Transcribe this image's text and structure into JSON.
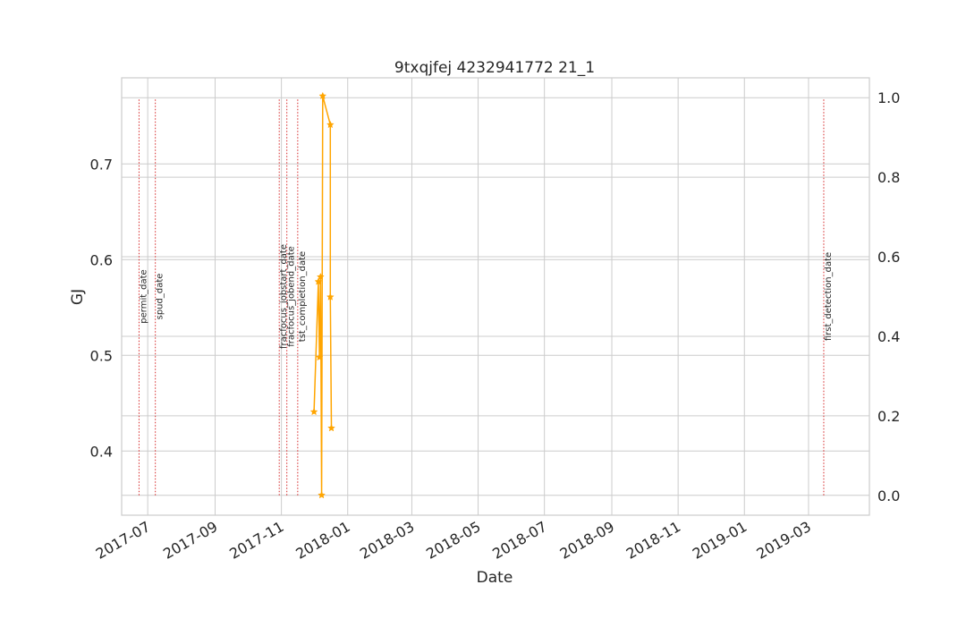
{
  "chart_data": {
    "type": "line",
    "title": "9txqjfej 4232941772 21_1",
    "xlabel": "Date",
    "ylabel": "GJ",
    "ylabel_color": "#1f77b4",
    "x_ticks": [
      "2017-07-01",
      "2017-09-01",
      "2017-11-01",
      "2018-01-01",
      "2018-03-01",
      "2018-05-01",
      "2018-07-01",
      "2018-09-01",
      "2018-11-01",
      "2019-01-01",
      "2019-03-01"
    ],
    "x_tick_labels": [
      "2017-07",
      "2017-09",
      "2017-11",
      "2018-01",
      "2018-03",
      "2018-05",
      "2018-07",
      "2018-09",
      "2018-11",
      "2019-01",
      "2019-03"
    ],
    "xlim": [
      "2017-06-07",
      "2019-04-26"
    ],
    "y_left": {
      "ticks": [
        0.4,
        0.5,
        0.6,
        0.7
      ],
      "tick_labels": [
        "0.4",
        "0.5",
        "0.6",
        "0.7"
      ],
      "lim": [
        0.333,
        0.79
      ]
    },
    "y_right": {
      "ticks": [
        0.0,
        0.2,
        0.4,
        0.6,
        0.8,
        1.0
      ],
      "tick_labels": [
        "0.0",
        "0.2",
        "0.4",
        "0.6",
        "0.8",
        "1.0"
      ],
      "lim": [
        -0.05,
        1.05
      ]
    },
    "grid": true,
    "series": [
      {
        "color": "#ffa500",
        "marker": "star",
        "axis": "left",
        "x": [
          "2017-12-01",
          "2017-12-05",
          "2017-12-06",
          "2017-12-07",
          "2017-12-08",
          "2017-12-09",
          "2017-12-16",
          "2017-12-16",
          "2017-12-17"
        ],
        "y": [
          0.441,
          0.577,
          0.498,
          0.582,
          0.354,
          0.771,
          0.741,
          0.561,
          0.424
        ]
      }
    ],
    "event_lines": [
      {
        "date": "2017-06-23",
        "label": "permit_date"
      },
      {
        "date": "2017-07-08",
        "label": "spud_date"
      },
      {
        "date": "2017-10-30",
        "label": "fracfocus_jobstart_date"
      },
      {
        "date": "2017-11-06",
        "label": "fracfocus_jobend_date"
      },
      {
        "date": "2017-11-16",
        "label": "tst_completion_date"
      },
      {
        "date": "2019-03-15",
        "label": "first_detection_date"
      }
    ],
    "event_line_color": "#d62728"
  }
}
